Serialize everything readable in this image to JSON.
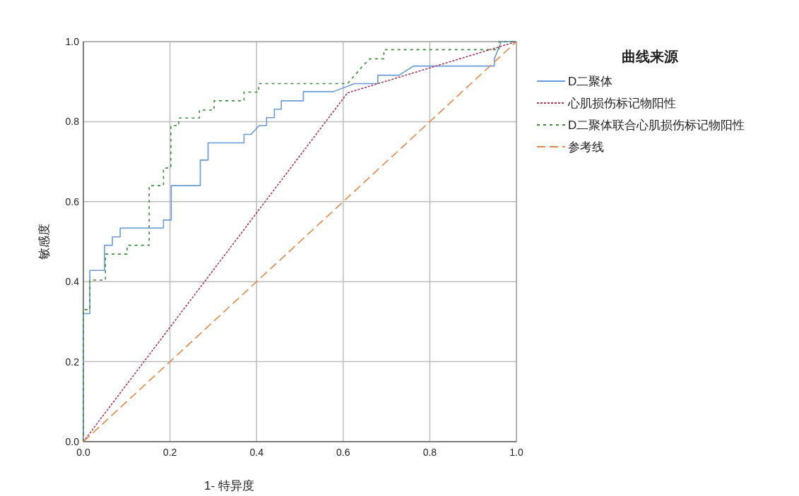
{
  "chart_data": {
    "type": "line",
    "xlabel": "1- 特异度",
    "ylabel": "敏感度",
    "legend_title": "曲线来源",
    "xlim": [
      0,
      1
    ],
    "ylim": [
      0,
      1
    ],
    "xticks": [
      {
        "value": 0,
        "label": "0.0"
      },
      {
        "value": 0.2,
        "label": "0.2"
      },
      {
        "value": 0.4,
        "label": "0.4"
      },
      {
        "value": 0.6,
        "label": "0.6"
      },
      {
        "value": 0.8,
        "label": "0.8"
      },
      {
        "value": 1,
        "label": "1.0"
      }
    ],
    "yticks": [
      {
        "value": 0,
        "label": "0.0"
      },
      {
        "value": 0.2,
        "label": "0.2"
      },
      {
        "value": 0.4,
        "label": "0.4"
      },
      {
        "value": 0.6,
        "label": "0.6"
      },
      {
        "value": 0.8,
        "label": "0.8"
      },
      {
        "value": 1,
        "label": "1.0"
      }
    ],
    "grid": true,
    "legend": "top right",
    "marker": "none",
    "series": [
      {
        "name": "D二聚体",
        "color": "#6a9ad6",
        "line_style": "solid",
        "x": [
          0,
          0,
          0.015,
          0.015,
          0.049,
          0.049,
          0.067,
          0.067,
          0.085,
          0.085,
          0.185,
          0.185,
          0.203,
          0.203,
          0.27,
          0.27,
          0.288,
          0.288,
          0.371,
          0.371,
          0.387,
          0.406,
          0.423,
          0.423,
          0.441,
          0.441,
          0.457,
          0.457,
          0.508,
          0.508,
          0.577,
          0.626,
          0.68,
          0.68,
          0.729,
          0.762,
          0.949,
          0.949,
          0.965,
          1
        ],
        "values": [
          0,
          0.32,
          0.32,
          0.428,
          0.428,
          0.491,
          0.491,
          0.512,
          0.512,
          0.534,
          0.534,
          0.554,
          0.554,
          0.64,
          0.64,
          0.704,
          0.704,
          0.747,
          0.747,
          0.768,
          0.768,
          0.79,
          0.79,
          0.81,
          0.81,
          0.831,
          0.831,
          0.852,
          0.852,
          0.875,
          0.875,
          0.895,
          0.895,
          0.916,
          0.916,
          0.939,
          0.939,
          0.957,
          1,
          1
        ]
      },
      {
        "name": "心肌损伤标记物阳性",
        "color": "#a8385a",
        "line_style": "dotted",
        "x": [
          0,
          0.61,
          1
        ],
        "values": [
          0,
          0.872,
          1
        ]
      },
      {
        "name": "D二聚体联合心肌损伤标记物阳性",
        "color": "#3e8a3e",
        "line_style": "dashed",
        "x": [
          0,
          0,
          0.015,
          0.015,
          0.051,
          0.051,
          0.101,
          0.101,
          0.152,
          0.152,
          0.185,
          0.185,
          0.202,
          0.202,
          0.22,
          0.22,
          0.268,
          0.268,
          0.302,
          0.302,
          0.371,
          0.371,
          0.405,
          0.405,
          0.61,
          0.645,
          0.661,
          0.694,
          0.694,
          0.96,
          0.96,
          1
        ],
        "values": [
          0,
          0.33,
          0.33,
          0.404,
          0.404,
          0.469,
          0.469,
          0.491,
          0.491,
          0.64,
          0.64,
          0.684,
          0.684,
          0.79,
          0.79,
          0.809,
          0.809,
          0.829,
          0.829,
          0.852,
          0.852,
          0.874,
          0.874,
          0.895,
          0.895,
          0.939,
          0.957,
          0.957,
          0.98,
          0.98,
          1,
          1
        ]
      },
      {
        "name": "参考线",
        "color": "#e0894a",
        "line_style": "longdash",
        "x": [
          0,
          1
        ],
        "values": [
          0,
          1
        ]
      }
    ]
  }
}
